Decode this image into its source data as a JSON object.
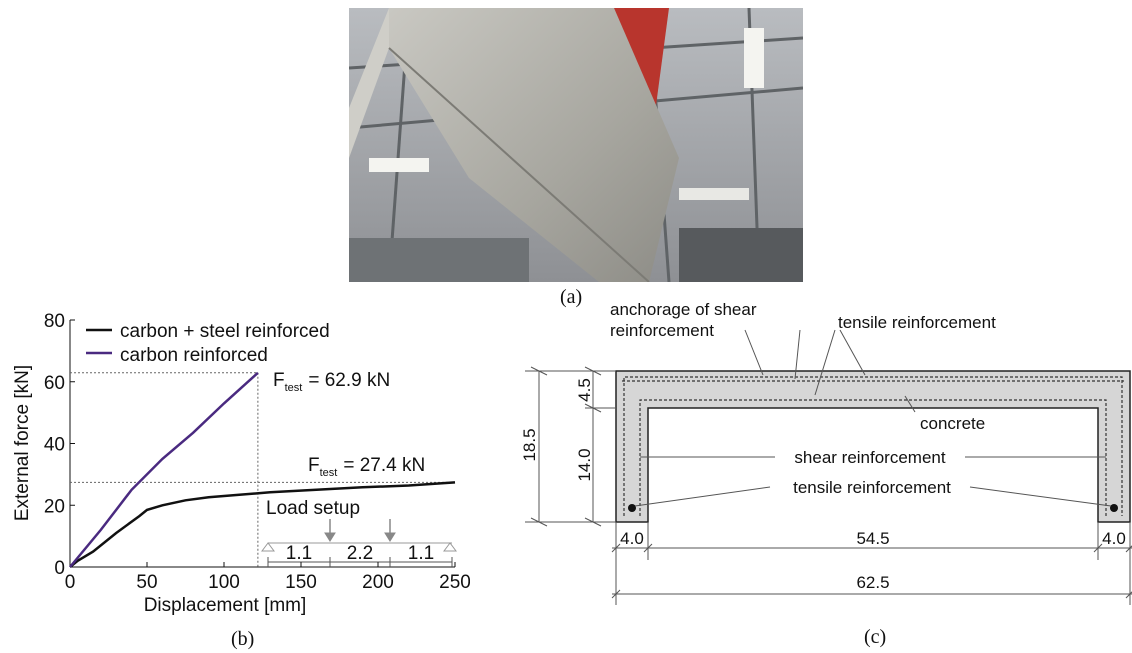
{
  "captions": {
    "a": "(a)",
    "b": "(b)",
    "c": "(c)"
  },
  "chart_data": {
    "type": "line",
    "title": "",
    "xlabel": "Displacement [mm]",
    "ylabel": "External force [kN]",
    "xlim": [
      0,
      250
    ],
    "ylim": [
      0,
      80
    ],
    "x_ticks": [
      "0",
      "50",
      "100",
      "150",
      "200",
      "250"
    ],
    "y_ticks": [
      "0",
      "20",
      "40",
      "60",
      "80"
    ],
    "grid": false,
    "legend_position": "top-left",
    "series": [
      {
        "name": "carbon + steel reinforced",
        "color": "#111111",
        "points": [
          [
            0,
            0
          ],
          [
            5,
            2
          ],
          [
            15,
            5
          ],
          [
            30,
            11
          ],
          [
            45,
            16.5
          ],
          [
            50,
            18.5
          ],
          [
            60,
            20
          ],
          [
            75,
            21.6
          ],
          [
            90,
            22.6
          ],
          [
            110,
            23.4
          ],
          [
            130,
            24.2
          ],
          [
            160,
            25
          ],
          [
            190,
            25.8
          ],
          [
            220,
            26.4
          ],
          [
            250,
            27.4
          ]
        ]
      },
      {
        "name": "carbon reinforced",
        "color": "#4a2a80",
        "points": [
          [
            0,
            0
          ],
          [
            20,
            12
          ],
          [
            40,
            25
          ],
          [
            60,
            35
          ],
          [
            80,
            43.5
          ],
          [
            100,
            53
          ],
          [
            122,
            62.9
          ]
        ]
      }
    ],
    "annotations": {
      "f_test_1": {
        "prefix": "F",
        "sub": "test",
        "value": "= 62.9 kN",
        "y": 62.9,
        "x": 122
      },
      "f_test_2": {
        "prefix": "F",
        "sub": "test",
        "value": "= 27.4 kN",
        "y": 27.4
      },
      "load_setup": {
        "title": "Load setup",
        "spans": [
          "1.1",
          "2.2",
          "1.1"
        ]
      }
    }
  },
  "section": {
    "labels": {
      "anchorage": "anchorage of shear",
      "anchorage2": "reinforcement",
      "tensile_top": "tensile reinforcement",
      "concrete": "concrete",
      "shear": "shear reinforcement",
      "tensile_bottom": "tensile reinforcement"
    },
    "dims": {
      "height_total": "18.5",
      "flange": "4.5",
      "web_height": "14.0",
      "left_web": "4.0",
      "inner": "54.5",
      "right_web": "4.0",
      "total_width": "62.5"
    }
  }
}
